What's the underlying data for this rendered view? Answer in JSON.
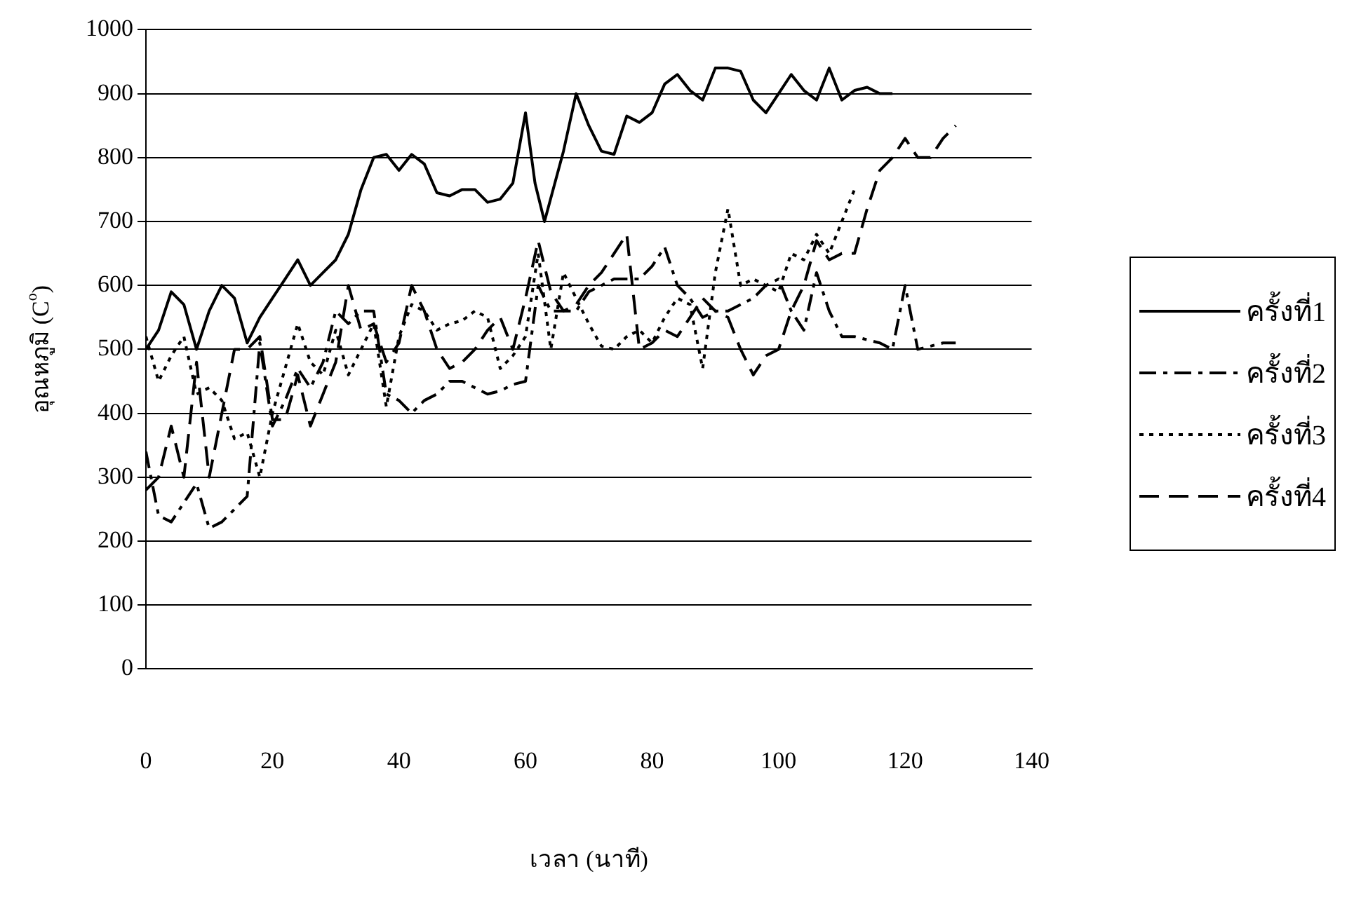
{
  "chart_data": {
    "type": "line",
    "xlabel": "เวลา (นาที)",
    "ylabel": "อุณหภูมิ (C$^{o}$)",
    "xlim": [
      0,
      140
    ],
    "xticks": [
      0,
      20,
      40,
      60,
      80,
      100,
      120,
      140
    ],
    "ylim": [
      0,
      1000
    ],
    "yticks": [
      0,
      100,
      200,
      300,
      400,
      500,
      600,
      700,
      800,
      900,
      1000
    ],
    "grid": "y",
    "legend": "right",
    "marker": "none",
    "series": [
      {
        "name": "ครั้งที่1",
        "color": "#000000",
        "line_style": "solid",
        "x": [
          0,
          2,
          4,
          6,
          8,
          10,
          12,
          14,
          16,
          18,
          20,
          22,
          24,
          26,
          28,
          30,
          32,
          34,
          36,
          38,
          40,
          42,
          44,
          46,
          48,
          50,
          52,
          54,
          56,
          58,
          60,
          61.5,
          63,
          66,
          68,
          70,
          72,
          74,
          76,
          78,
          80,
          82,
          84,
          86,
          88,
          90,
          92,
          94,
          96,
          98,
          100,
          102,
          104,
          106,
          108,
          110,
          112,
          114,
          116,
          118
        ],
        "values": [
          500,
          530,
          590,
          570,
          500,
          560,
          600,
          580,
          510,
          550,
          580,
          610,
          640,
          600,
          620,
          640,
          680,
          750,
          800,
          805,
          780,
          805,
          790,
          745,
          740,
          750,
          750,
          730,
          735,
          760,
          870,
          760,
          700,
          810,
          900,
          850,
          810,
          805,
          865,
          855,
          870,
          915,
          930,
          905,
          890,
          940,
          940,
          935,
          890,
          870,
          900,
          930,
          905,
          890,
          940,
          890,
          905,
          910,
          900,
          900
        ]
      },
      {
        "name": "ครั้งที่2",
        "color": "#000000",
        "line_style": "dashdot",
        "x": [
          0,
          2,
          4,
          6,
          8,
          10,
          12,
          14,
          16,
          18,
          20,
          22,
          24,
          26,
          28,
          30,
          32,
          34,
          36,
          38,
          40,
          42,
          44,
          46,
          48,
          50,
          52,
          54,
          56,
          58,
          60,
          62,
          64,
          66,
          68,
          70,
          72,
          74,
          76,
          78,
          80,
          82,
          84,
          86,
          88,
          90,
          92,
          94,
          96,
          98,
          100,
          102,
          104,
          106,
          108,
          110,
          112,
          114,
          116,
          118,
          120,
          122,
          124,
          126,
          128
        ],
        "values": [
          340,
          240,
          230,
          260,
          290,
          220,
          230,
          250,
          270,
          510,
          380,
          420,
          470,
          440,
          480,
          560,
          540,
          560,
          560,
          430,
          420,
          400,
          420,
          430,
          450,
          450,
          440,
          430,
          435,
          445,
          450,
          600,
          560,
          560,
          560,
          590,
          600,
          610,
          610,
          610,
          630,
          660,
          600,
          580,
          550,
          560,
          560,
          570,
          580,
          600,
          610,
          560,
          530,
          620,
          560,
          520,
          520,
          515,
          510,
          500,
          600,
          500,
          505,
          510,
          510
        ]
      },
      {
        "name": "ครั้งที่3",
        "color": "#000000",
        "line_style": "dotted",
        "x": [
          0,
          2,
          4,
          6,
          8,
          10,
          12,
          14,
          16,
          18,
          20,
          22,
          24,
          26,
          28,
          30,
          32,
          34,
          36,
          38,
          40,
          42,
          44,
          46,
          48,
          50,
          52,
          54,
          56,
          58,
          60,
          62,
          64,
          66,
          68,
          70,
          72,
          74,
          76,
          78,
          80,
          82,
          84,
          86,
          88,
          90,
          92,
          94,
          96,
          98,
          100,
          102,
          104,
          106,
          108,
          110,
          112
        ],
        "values": [
          520,
          450,
          490,
          520,
          430,
          440,
          420,
          360,
          370,
          300,
          400,
          470,
          540,
          480,
          460,
          530,
          460,
          500,
          540,
          410,
          520,
          570,
          560,
          530,
          540,
          545,
          560,
          550,
          470,
          490,
          520,
          650,
          500,
          620,
          580,
          540,
          505,
          500,
          520,
          530,
          510,
          550,
          580,
          570,
          470,
          620,
          720,
          600,
          610,
          600,
          590,
          650,
          640,
          680,
          650,
          700,
          750
        ]
      },
      {
        "name": "ครั้งที่4",
        "color": "#000000",
        "line_style": "dashed",
        "x": [
          0,
          2,
          4,
          6,
          8,
          10,
          12,
          14,
          16,
          18,
          20,
          22,
          24,
          26,
          28,
          30,
          32,
          34,
          36,
          38,
          40,
          42,
          44,
          46,
          48,
          50,
          52,
          54,
          56,
          58,
          60,
          62,
          64,
          66,
          68,
          70,
          72,
          74,
          76,
          78,
          80,
          82,
          84,
          86,
          88,
          90,
          92,
          94,
          96,
          98,
          100,
          102,
          104,
          106,
          108,
          110,
          112,
          114,
          116,
          118,
          120,
          122,
          124,
          126,
          128
        ],
        "values": [
          280,
          300,
          380,
          300,
          480,
          300,
          400,
          500,
          500,
          520,
          390,
          390,
          460,
          380,
          430,
          480,
          600,
          530,
          540,
          480,
          510,
          600,
          560,
          500,
          470,
          480,
          500,
          530,
          550,
          500,
          580,
          670,
          590,
          560,
          570,
          600,
          620,
          650,
          680,
          500,
          510,
          530,
          520,
          550,
          580,
          560,
          550,
          500,
          460,
          490,
          500,
          560,
          600,
          670,
          640,
          650,
          650,
          720,
          780,
          800,
          830,
          800,
          800,
          830,
          850
        ]
      }
    ]
  }
}
